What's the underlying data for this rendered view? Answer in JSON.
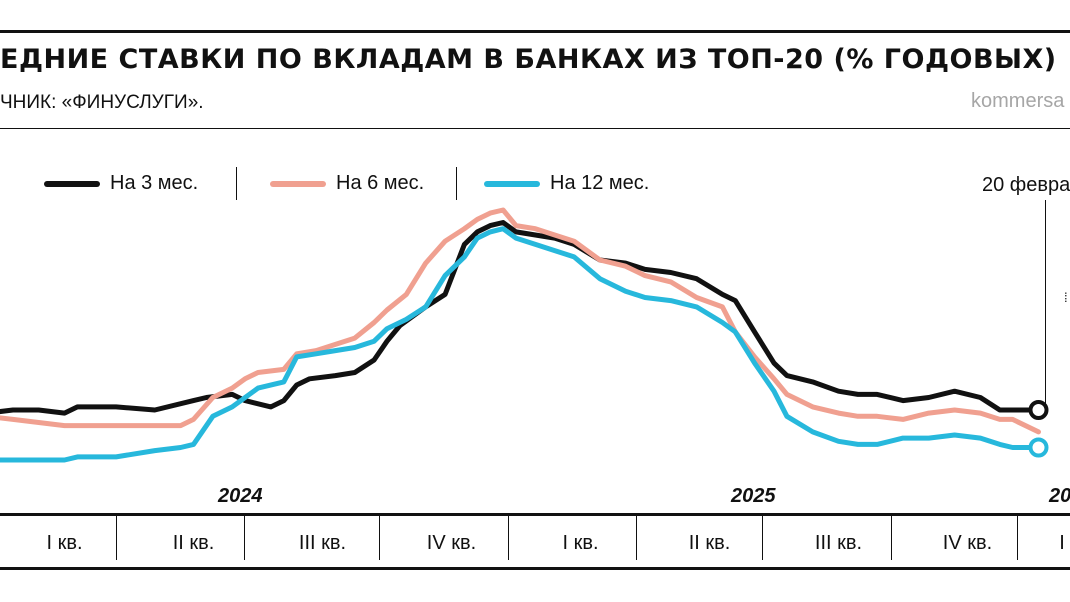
{
  "header": {
    "title": "ЕДНИЕ СТАВКИ ПО ВКЛАДАМ В БАНКАХ ИЗ ТОП-20 (% ГОДОВЫХ)",
    "source": "ЧНИК: «ФИНУСЛУГИ».",
    "brand": "kommersa"
  },
  "annotation": {
    "date_label": "20 февра"
  },
  "colors": {
    "m3": "#111111",
    "m6": "#f0a090",
    "m12": "#27b8dc"
  },
  "chart_data": {
    "type": "line",
    "title": "ЕДНИЕ СТАВКИ ПО ВКЛАДАМ В БАНКАХ ИЗ ТОП-20 (% ГОДОВЫХ)",
    "x_unit": "quarter index (0 = start of I кв. 2024)",
    "x_range": [
      -0.1,
      8.05
    ],
    "quarters": [
      "I кв.",
      "II кв.",
      "III кв.",
      "IV кв.",
      "I кв.",
      "II кв.",
      "III кв.",
      "IV кв.",
      "I"
    ],
    "years": [
      "2024",
      "2025",
      "20"
    ],
    "y_unit": "% годовых",
    "grid": false,
    "legend_position": "top-left",
    "series": [
      {
        "name": "На 3 мес.",
        "color": "#111111",
        "x": [
          -0.1,
          0.1,
          0.3,
          0.5,
          0.6,
          0.9,
          1.2,
          1.5,
          1.6,
          1.8,
          1.9,
          2.1,
          2.2,
          2.3,
          2.4,
          2.6,
          2.75,
          2.9,
          3.0,
          3.1,
          3.3,
          3.45,
          3.6,
          3.7,
          3.8,
          3.9,
          4.0,
          4.15,
          4.3,
          4.45,
          4.65,
          4.85,
          5.0,
          5.2,
          5.4,
          5.6,
          5.7,
          5.85,
          6.0,
          6.1,
          6.3,
          6.5,
          6.65,
          6.8,
          7.0,
          7.2,
          7.4,
          7.6,
          7.75,
          7.85,
          8.05
        ],
        "y": [
          11.9,
          11.95,
          11.95,
          11.9,
          12.0,
          12.0,
          11.95,
          12.1,
          12.15,
          12.2,
          12.1,
          12.0,
          12.1,
          12.35,
          12.45,
          12.5,
          12.55,
          12.75,
          13.05,
          13.3,
          13.6,
          13.8,
          14.6,
          14.8,
          14.9,
          14.95,
          14.8,
          14.75,
          14.7,
          14.6,
          14.35,
          14.3,
          14.2,
          14.15,
          14.05,
          13.8,
          13.7,
          13.2,
          12.7,
          12.5,
          12.4,
          12.25,
          12.2,
          12.2,
          12.1,
          12.15,
          12.25,
          12.15,
          11.95,
          11.95,
          11.95
        ]
      },
      {
        "name": "На 6 мес.",
        "color": "#f0a090",
        "x": [
          -0.1,
          0.1,
          0.3,
          0.5,
          0.6,
          0.9,
          1.2,
          1.4,
          1.5,
          1.65,
          1.8,
          1.9,
          2.0,
          2.2,
          2.3,
          2.45,
          2.6,
          2.75,
          2.9,
          3.0,
          3.15,
          3.3,
          3.45,
          3.6,
          3.7,
          3.8,
          3.9,
          4.0,
          4.15,
          4.3,
          4.45,
          4.65,
          4.85,
          5.0,
          5.2,
          5.4,
          5.6,
          5.7,
          5.85,
          6.0,
          6.1,
          6.3,
          6.5,
          6.65,
          6.8,
          7.0,
          7.2,
          7.4,
          7.6,
          7.75,
          7.85,
          8.05
        ],
        "y": [
          11.85,
          11.8,
          11.75,
          11.7,
          11.7,
          11.7,
          11.7,
          11.7,
          11.8,
          12.15,
          12.3,
          12.45,
          12.55,
          12.6,
          12.85,
          12.9,
          13.0,
          13.1,
          13.35,
          13.55,
          13.8,
          14.3,
          14.65,
          14.85,
          15.0,
          15.1,
          15.15,
          14.9,
          14.85,
          14.75,
          14.65,
          14.35,
          14.25,
          14.1,
          14.0,
          13.75,
          13.6,
          13.2,
          12.8,
          12.45,
          12.2,
          12.0,
          11.9,
          11.85,
          11.85,
          11.8,
          11.9,
          11.95,
          11.9,
          11.8,
          11.8,
          11.6
        ]
      },
      {
        "name": "На 12 мес.",
        "color": "#27b8dc",
        "x": [
          -0.1,
          0.1,
          0.3,
          0.5,
          0.6,
          0.9,
          1.2,
          1.4,
          1.5,
          1.65,
          1.8,
          1.9,
          2.0,
          2.2,
          2.3,
          2.45,
          2.6,
          2.75,
          2.9,
          3.0,
          3.15,
          3.3,
          3.45,
          3.6,
          3.7,
          3.8,
          3.9,
          4.0,
          4.15,
          4.3,
          4.45,
          4.65,
          4.85,
          5.0,
          5.2,
          5.4,
          5.6,
          5.7,
          5.85,
          6.0,
          6.1,
          6.3,
          6.5,
          6.65,
          6.8,
          7.0,
          7.2,
          7.4,
          7.6,
          7.75,
          7.85,
          8.05
        ],
        "y": [
          11.15,
          11.15,
          11.15,
          11.15,
          11.2,
          11.2,
          11.3,
          11.35,
          11.4,
          11.85,
          12.0,
          12.15,
          12.3,
          12.4,
          12.8,
          12.85,
          12.9,
          12.95,
          13.05,
          13.25,
          13.4,
          13.6,
          14.1,
          14.4,
          14.7,
          14.8,
          14.85,
          14.7,
          14.6,
          14.5,
          14.4,
          14.05,
          13.85,
          13.75,
          13.7,
          13.6,
          13.35,
          13.2,
          12.7,
          12.25,
          11.85,
          11.6,
          11.45,
          11.4,
          11.4,
          11.5,
          11.5,
          11.55,
          11.5,
          11.4,
          11.35,
          11.35
        ]
      }
    ],
    "endpoint_markers": [
      "На 3 мес.",
      "На 12 мес."
    ]
  }
}
